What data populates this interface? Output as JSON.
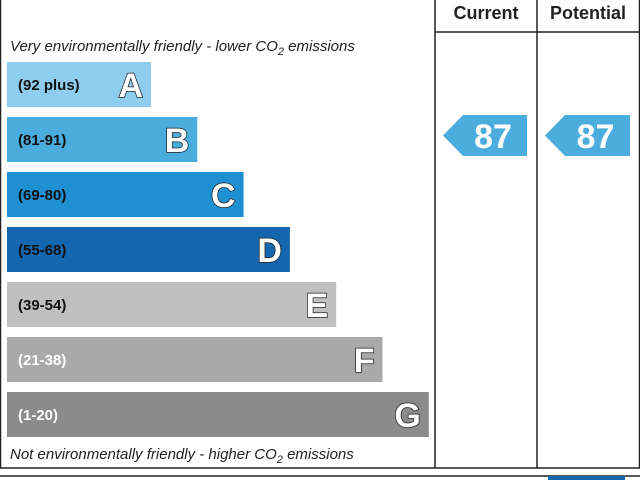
{
  "header": {
    "current": "Current",
    "potential": "Potential"
  },
  "top_note": {
    "text": "Very environmentally friendly - lower CO",
    "sub": "2",
    "rest": " emissions"
  },
  "bottom_note": {
    "text": "Not environmentally friendly - higher CO",
    "sub": "2",
    "rest": " emissions"
  },
  "bands": [
    {
      "range": "(92 plus)",
      "letter": "A",
      "color": "#8fcdef"
    },
    {
      "range": "(81-91)",
      "letter": "B",
      "color": "#4badde"
    },
    {
      "range": "(69-80)",
      "letter": "C",
      "color": "#1f90d1"
    },
    {
      "range": "(55-68)",
      "letter": "D",
      "color": "#1467ae"
    },
    {
      "range": "(39-54)",
      "letter": "E",
      "color": "#c0c0c0"
    },
    {
      "range": "(21-38)",
      "letter": "F",
      "color": "#a9a9a9"
    },
    {
      "range": "(1-20)",
      "letter": "G",
      "color": "#8b8b8b"
    }
  ],
  "current": {
    "value": 87,
    "band": 1
  },
  "potential": {
    "value": 87,
    "band": 1
  }
}
